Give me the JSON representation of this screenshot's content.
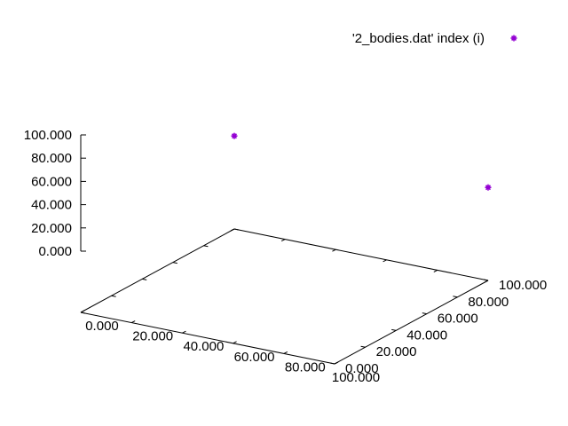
{
  "chart_data": {
    "type": "scatter",
    "title": "",
    "legend": {
      "position": "top-right",
      "entries": [
        "'2_bodies.dat' index (i)"
      ]
    },
    "series": [
      {
        "name": "'2_bodies.dat' index (i)",
        "color": "#9400d3",
        "marker": "star",
        "points": [
          {
            "x": 0,
            "y": 100,
            "z": 80
          },
          {
            "x": 100,
            "y": 100,
            "z": 80
          }
        ]
      }
    ],
    "xaxis": {
      "range": [
        0,
        100
      ],
      "ticks": [
        "0.000",
        "20.000",
        "40.000",
        "60.000",
        "80.000",
        "100.000"
      ]
    },
    "yaxis": {
      "range": [
        0,
        100
      ],
      "ticks": [
        "0.000",
        "20.000",
        "40.000",
        "60.000",
        "80.000",
        "100.000"
      ]
    },
    "zaxis": {
      "range": [
        0,
        100
      ],
      "ticks": [
        "0.000",
        "20.000",
        "40.000",
        "60.000",
        "80.000",
        "100.000"
      ]
    },
    "grid": false
  }
}
